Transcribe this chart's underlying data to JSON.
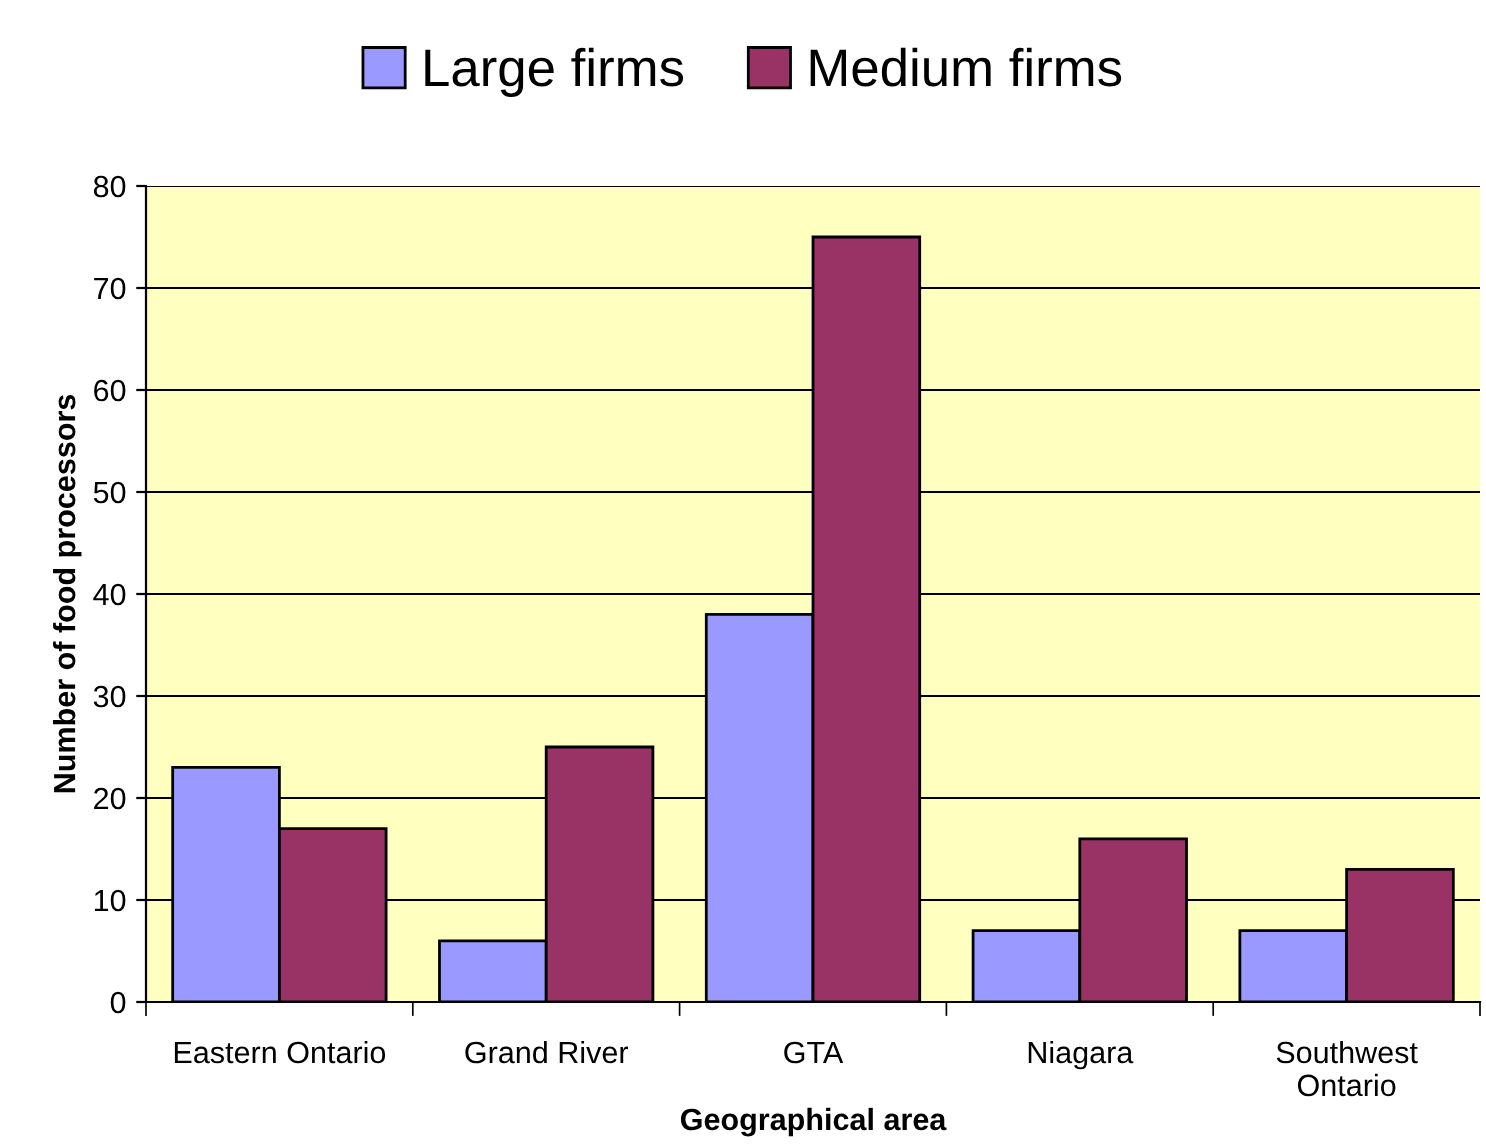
{
  "chart_data": {
    "type": "bar",
    "xlabel": "Geographical area",
    "ylabel": "Number of food processors",
    "categories": [
      "Eastern Ontario",
      "Grand River",
      "GTA",
      "Niagara",
      "Southwest\nOntario"
    ],
    "series": [
      {
        "name": "Large firms",
        "color": "#9999ff",
        "values": [
          23,
          6,
          38,
          7,
          7
        ]
      },
      {
        "name": "Medium firms",
        "color": "#993366",
        "values": [
          17,
          25,
          75,
          16,
          13
        ]
      }
    ],
    "ylim": [
      0,
      80
    ],
    "yticks": [
      0,
      10,
      20,
      30,
      40,
      50,
      60,
      70,
      80
    ],
    "grid": "y",
    "legend": "top"
  }
}
